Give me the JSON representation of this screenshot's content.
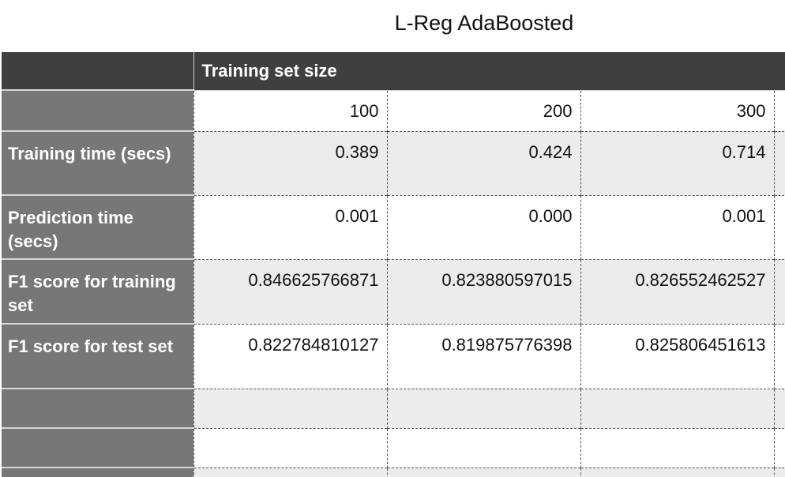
{
  "title": "L-Reg AdaBoosted",
  "table": {
    "header": "Training set size",
    "sizes": [
      "100",
      "200",
      "300"
    ],
    "rows": [
      {
        "label": "Training time (secs)",
        "values": [
          "0.389",
          "0.424",
          "0.714"
        ]
      },
      {
        "label": "Prediction time (secs)",
        "values": [
          "0.001",
          "0.000",
          "0.001"
        ]
      },
      {
        "label": "F1 score for training set",
        "values": [
          "0.846625766871",
          "0.823880597015",
          "0.826552462527"
        ]
      },
      {
        "label": "F1 score for test set",
        "values": [
          "0.822784810127",
          "0.819875776398",
          "0.825806451613"
        ]
      }
    ]
  }
}
